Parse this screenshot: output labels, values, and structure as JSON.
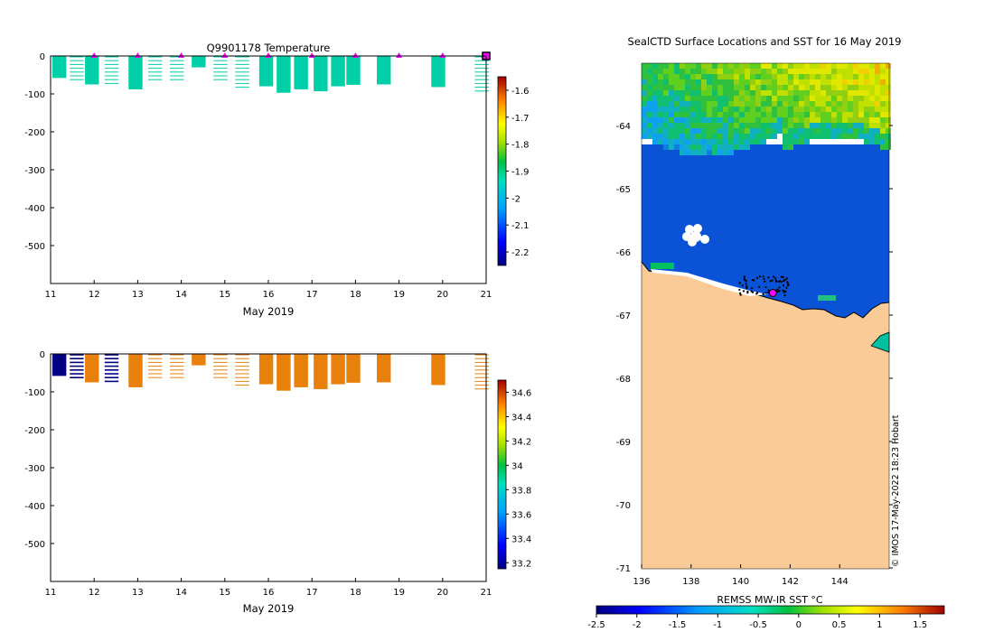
{
  "colors": {
    "land": "#fbcb97",
    "water": "#0a52d6",
    "marker": "#ff00ff",
    "temp_data": "#00cfa8",
    "sal_data": "#e8800c",
    "sal_dark": "#000080",
    "axis": "#000000"
  },
  "chart_data": [
    {
      "type": "heatmap",
      "title": "Q9901178  Temperature",
      "xlabel": "May 2019",
      "ylabel": "",
      "x_ticks": [
        "11",
        "12",
        "13",
        "14",
        "15",
        "16",
        "17",
        "18",
        "19",
        "20",
        "21"
      ],
      "xlim": [
        11,
        21
      ],
      "y_ticks": [
        "0",
        "-100",
        "-200",
        "-300",
        "-400",
        "-500"
      ],
      "ylim": [
        -600,
        0
      ],
      "colorbar": {
        "ticks": [
          "-1.6",
          "-1.7",
          "-1.8",
          "-1.9",
          "-2",
          "-2.1",
          "-2.2"
        ],
        "values": [
          -1.6,
          -1.7,
          -1.8,
          -1.9,
          -2.0,
          -2.1,
          -2.2
        ],
        "range": [
          -2.25,
          -1.55
        ]
      },
      "surface_markers_day": [
        12,
        13,
        14,
        15,
        16,
        17,
        18,
        19,
        20
      ],
      "profiles": [
        {
          "day": 11.2,
          "depth": 58,
          "style": "solid"
        },
        {
          "day": 11.6,
          "depth": 70,
          "style": "lines"
        },
        {
          "day": 11.95,
          "depth": 75,
          "style": "solid"
        },
        {
          "day": 12.4,
          "depth": 78,
          "style": "lines"
        },
        {
          "day": 12.95,
          "depth": 88,
          "style": "solid"
        },
        {
          "day": 13.4,
          "depth": 70,
          "style": "lines"
        },
        {
          "day": 13.9,
          "depth": 72,
          "style": "lines"
        },
        {
          "day": 14.4,
          "depth": 30,
          "style": "solid"
        },
        {
          "day": 14.9,
          "depth": 65,
          "style": "lines"
        },
        {
          "day": 15.4,
          "depth": 88,
          "style": "lines"
        },
        {
          "day": 15.95,
          "depth": 80,
          "style": "solid"
        },
        {
          "day": 16.35,
          "depth": 97,
          "style": "solid"
        },
        {
          "day": 16.75,
          "depth": 88,
          "style": "solid"
        },
        {
          "day": 17.2,
          "depth": 93,
          "style": "solid"
        },
        {
          "day": 17.6,
          "depth": 80,
          "style": "solid"
        },
        {
          "day": 17.95,
          "depth": 76,
          "style": "solid"
        },
        {
          "day": 18.65,
          "depth": 75,
          "style": "solid"
        },
        {
          "day": 19.9,
          "depth": 82,
          "style": "solid"
        },
        {
          "day": 20.9,
          "depth": 100,
          "style": "lines"
        }
      ]
    },
    {
      "type": "heatmap",
      "title": "",
      "xlabel": "May 2019",
      "ylabel": "",
      "x_ticks": [
        "11",
        "12",
        "13",
        "14",
        "15",
        "16",
        "17",
        "18",
        "19",
        "20",
        "21"
      ],
      "xlim": [
        11,
        21
      ],
      "y_ticks": [
        "0",
        "-100",
        "-200",
        "-300",
        "-400",
        "-500"
      ],
      "ylim": [
        -600,
        0
      ],
      "colorbar": {
        "ticks": [
          "34.6",
          "34.4",
          "34.2",
          "34",
          "33.8",
          "33.6",
          "33.4",
          "33.2"
        ],
        "values": [
          34.6,
          34.4,
          34.2,
          34.0,
          33.8,
          33.6,
          33.4,
          33.2
        ],
        "range": [
          33.15,
          34.7
        ]
      },
      "profiles": [
        {
          "day": 11.2,
          "depth": 58,
          "style": "dark"
        },
        {
          "day": 11.6,
          "depth": 70,
          "style": "darklines"
        },
        {
          "day": 11.95,
          "depth": 75,
          "style": "solid"
        },
        {
          "day": 12.4,
          "depth": 78,
          "style": "darklines"
        },
        {
          "day": 12.95,
          "depth": 88,
          "style": "solid"
        },
        {
          "day": 13.4,
          "depth": 70,
          "style": "lines"
        },
        {
          "day": 13.9,
          "depth": 72,
          "style": "lines"
        },
        {
          "day": 14.4,
          "depth": 30,
          "style": "solid"
        },
        {
          "day": 14.9,
          "depth": 65,
          "style": "lines"
        },
        {
          "day": 15.4,
          "depth": 88,
          "style": "lines"
        },
        {
          "day": 15.95,
          "depth": 80,
          "style": "solid"
        },
        {
          "day": 16.35,
          "depth": 97,
          "style": "solid"
        },
        {
          "day": 16.75,
          "depth": 88,
          "style": "solid"
        },
        {
          "day": 17.2,
          "depth": 93,
          "style": "solid"
        },
        {
          "day": 17.6,
          "depth": 80,
          "style": "solid"
        },
        {
          "day": 17.95,
          "depth": 76,
          "style": "solid"
        },
        {
          "day": 18.65,
          "depth": 75,
          "style": "solid"
        },
        {
          "day": 19.9,
          "depth": 82,
          "style": "solid"
        },
        {
          "day": 20.9,
          "depth": 100,
          "style": "lines"
        }
      ]
    },
    {
      "type": "heatmap",
      "title": "SealCTD Surface Locations and SST for 16 May 2019",
      "xlabel": "",
      "ylabel": "",
      "x_ticks": [
        "136",
        "138",
        "140",
        "142",
        "144"
      ],
      "xlim": [
        136,
        146
      ],
      "y_ticks": [
        "-64",
        "-65",
        "-66",
        "-67",
        "-68",
        "-69",
        "-70",
        "-71"
      ],
      "ylim": [
        -71,
        -63.2
      ],
      "colorbar": {
        "label": "REMSS MW-IR SST °C",
        "ticks": [
          "-2.5",
          "-2",
          "-1.5",
          "-1",
          "-0.5",
          "0",
          "0.5",
          "1",
          "1.5"
        ],
        "values": [
          -2.5,
          -2,
          -1.5,
          -1,
          -0.5,
          0,
          0.5,
          1,
          1.5
        ],
        "range": [
          -2.5,
          1.8
        ]
      },
      "credit": "© IMOS 17-May-2022 18:23 Hobart",
      "current_location": {
        "lon": 141.3,
        "lat": -66.65
      }
    }
  ]
}
